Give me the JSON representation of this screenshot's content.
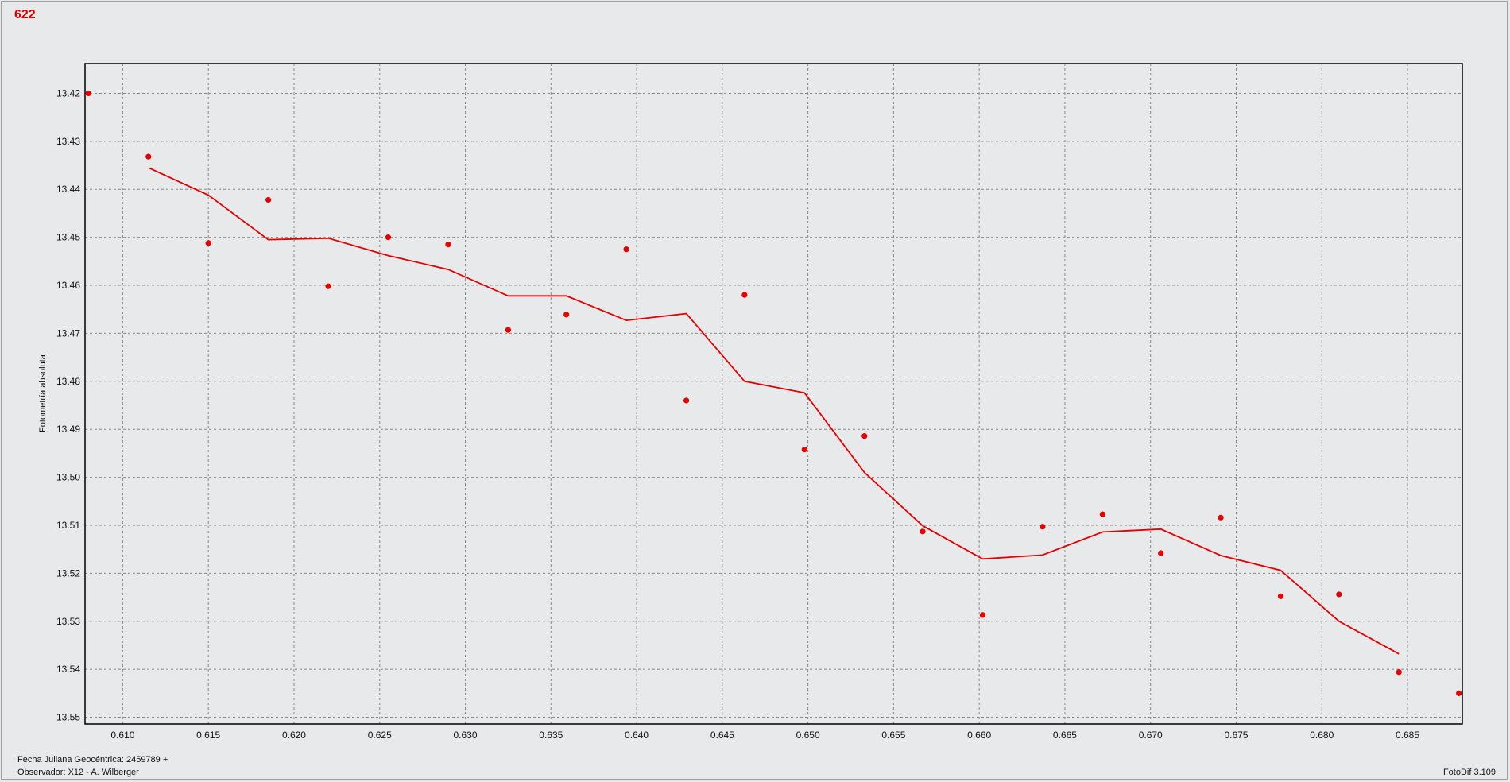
{
  "header": {
    "object_id": "622"
  },
  "footer": {
    "date_label": "Fecha Juliana Geocéntrica: 2459789 +",
    "observer_label": "Observador: X12 - A. Wilberger",
    "software_label": "FotoDif 3.109"
  },
  "colors": {
    "series": "#e60000",
    "grid": "#888888",
    "background": "#e8e9ea"
  },
  "chart_data": {
    "type": "scatter",
    "title": "",
    "xlabel": "",
    "ylabel": "Fotometría absoluta",
    "xlim": [
      0.6078,
      0.6882
    ],
    "ylim": [
      13.4138,
      13.5514
    ],
    "y_inverted": true,
    "grid": true,
    "xticks": [
      "0.610",
      "0.615",
      "0.620",
      "0.625",
      "0.630",
      "0.635",
      "0.640",
      "0.645",
      "0.650",
      "0.655",
      "0.660",
      "0.665",
      "0.670",
      "0.675",
      "0.680",
      "0.685"
    ],
    "yticks": [
      "13.42",
      "13.43",
      "13.44",
      "13.45",
      "13.46",
      "13.47",
      "13.48",
      "13.49",
      "13.50",
      "13.51",
      "13.52",
      "13.53",
      "13.54",
      "13.55"
    ],
    "series": [
      {
        "type": "scatter",
        "x": [
          0.608,
          0.6115,
          0.615,
          0.6185,
          0.622,
          0.6255,
          0.629,
          0.6325,
          0.6359,
          0.6394,
          0.6429,
          0.6463,
          0.6498,
          0.6533,
          0.6567,
          0.6602,
          0.6637,
          0.6672,
          0.6706,
          0.6741,
          0.6776,
          0.681,
          0.6845,
          0.688
        ],
        "y": [
          13.42,
          13.4332,
          13.4512,
          13.4422,
          13.4602,
          13.45,
          13.4515,
          13.4693,
          13.4661,
          13.4525,
          13.484,
          13.462,
          13.4942,
          13.4914,
          13.5113,
          13.5287,
          13.5103,
          13.5077,
          13.5158,
          13.5084,
          13.5248,
          13.5244,
          13.5406,
          13.545
        ]
      },
      {
        "type": "line",
        "x": [
          0.6115,
          0.615,
          0.6185,
          0.622,
          0.6255,
          0.629,
          0.6325,
          0.6359,
          0.6394,
          0.6429,
          0.6463,
          0.6498,
          0.6533,
          0.6567,
          0.6602,
          0.6637,
          0.6672,
          0.6706,
          0.6741,
          0.6776,
          0.681,
          0.6845
        ],
        "y": [
          13.4355,
          13.4412,
          13.4505,
          13.4502,
          13.4538,
          13.4567,
          13.4622,
          13.4622,
          13.4673,
          13.4659,
          13.48,
          13.4824,
          13.499,
          13.5101,
          13.517,
          13.5162,
          13.5114,
          13.5108,
          13.5163,
          13.5194,
          13.53,
          13.5368
        ]
      }
    ]
  }
}
